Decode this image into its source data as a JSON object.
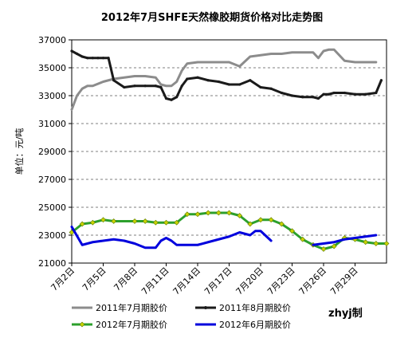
{
  "chart_data": {
    "type": "line",
    "title": "2012年7月SHFE天然橡胶期货价格对比走势图",
    "ylabel": "单位：元/吨",
    "xlabel": "",
    "ylim": [
      21000,
      37000
    ],
    "yticks": [
      21000,
      23000,
      25000,
      27000,
      29000,
      31000,
      33000,
      35000,
      37000
    ],
    "x_range": [
      2,
      32
    ],
    "xticks": [
      "7月2日",
      "7月5日",
      "7月8日",
      "7月11日",
      "7月14日",
      "7月17日",
      "7月20日",
      "7月23日",
      "7月26日",
      "7月29日"
    ],
    "x_tick_values": [
      2,
      5,
      8,
      11,
      14,
      17,
      20,
      23,
      26,
      29
    ],
    "grid": "horizontal dashed",
    "legend": "bottom",
    "credit": "zhyj制",
    "series": [
      {
        "name": "2011年7月期胶价",
        "color": "#8c8c8c",
        "marker": "none",
        "x": [
          2,
          2.5,
          3,
          3.5,
          4,
          5,
          6,
          7,
          8,
          9,
          10,
          10.5,
          11,
          11.5,
          12,
          12.5,
          13,
          14,
          15,
          16,
          17,
          18,
          19,
          20,
          21,
          22,
          23,
          24,
          25,
          25.5,
          26,
          26.5,
          27,
          28,
          29,
          30,
          31
        ],
        "values": [
          32000,
          33000,
          33500,
          33700,
          33700,
          34000,
          34200,
          34300,
          34400,
          34400,
          34300,
          33800,
          33700,
          33700,
          34000,
          34800,
          35300,
          35400,
          35400,
          35400,
          35400,
          35100,
          35800,
          35900,
          36000,
          36000,
          36100,
          36100,
          36100,
          35700,
          36200,
          36300,
          36300,
          35500,
          35400,
          35400,
          35400
        ]
      },
      {
        "name": "2011年8月期胶价",
        "color": "#1a1a1a",
        "marker": "dot",
        "x": [
          2,
          2.5,
          3,
          3.5,
          4,
          4.5,
          5,
          5.5,
          6,
          7,
          8,
          9,
          10,
          10.5,
          11,
          11.5,
          12,
          12.5,
          13,
          14,
          15,
          16,
          17,
          18,
          19,
          20,
          21,
          22,
          23,
          24,
          25,
          25.5,
          26,
          26.5,
          27,
          28,
          29,
          30,
          31,
          31.5
        ],
        "values": [
          36200,
          36000,
          35800,
          35700,
          35700,
          35700,
          35700,
          35700,
          34100,
          33600,
          33700,
          33700,
          33700,
          33600,
          32800,
          32700,
          32900,
          33700,
          34200,
          34300,
          34100,
          34000,
          33800,
          33800,
          34100,
          33600,
          33500,
          33200,
          33000,
          32900,
          32900,
          32800,
          33100,
          33100,
          33200,
          33200,
          33100,
          33100,
          33200,
          34100
        ]
      },
      {
        "name": "2012年7月期胶价",
        "color": "#2ca02c",
        "marker": "diamond",
        "x": [
          2,
          3,
          4,
          5,
          6,
          8,
          9,
          10,
          11,
          12,
          13,
          14,
          15,
          16,
          17,
          18,
          19,
          20,
          21,
          22,
          23,
          24,
          25,
          26,
          27,
          28,
          29,
          30,
          31,
          32
        ],
        "values": [
          23200,
          23800,
          23900,
          24100,
          24000,
          24000,
          24000,
          23900,
          23900,
          23900,
          24500,
          24500,
          24600,
          24600,
          24600,
          24400,
          23800,
          24100,
          24100,
          23800,
          23300,
          22700,
          22300,
          22000,
          22200,
          22800,
          22700,
          22500,
          22400,
          22400
        ]
      },
      {
        "name": "2012年6月期胶价",
        "color": "#0000dd",
        "marker": "none",
        "x": [
          2,
          3,
          4,
          5,
          6,
          7,
          8,
          9,
          10,
          10.5,
          11,
          11.5,
          12,
          13,
          14,
          15,
          16,
          17,
          18,
          19,
          19.5,
          20,
          21
        ],
        "values": [
          23600,
          22300,
          22500,
          22600,
          22700,
          22600,
          22400,
          22100,
          22100,
          22600,
          22800,
          22600,
          22300,
          22300,
          22300,
          22500,
          22700,
          22900,
          23200,
          23000,
          23300,
          23300,
          22600
        ],
        "x2": [
          25,
          26,
          27,
          28,
          29,
          30,
          31
        ],
        "values2": [
          22300,
          22400,
          22500,
          22700,
          22800,
          22900,
          23000
        ]
      }
    ]
  }
}
